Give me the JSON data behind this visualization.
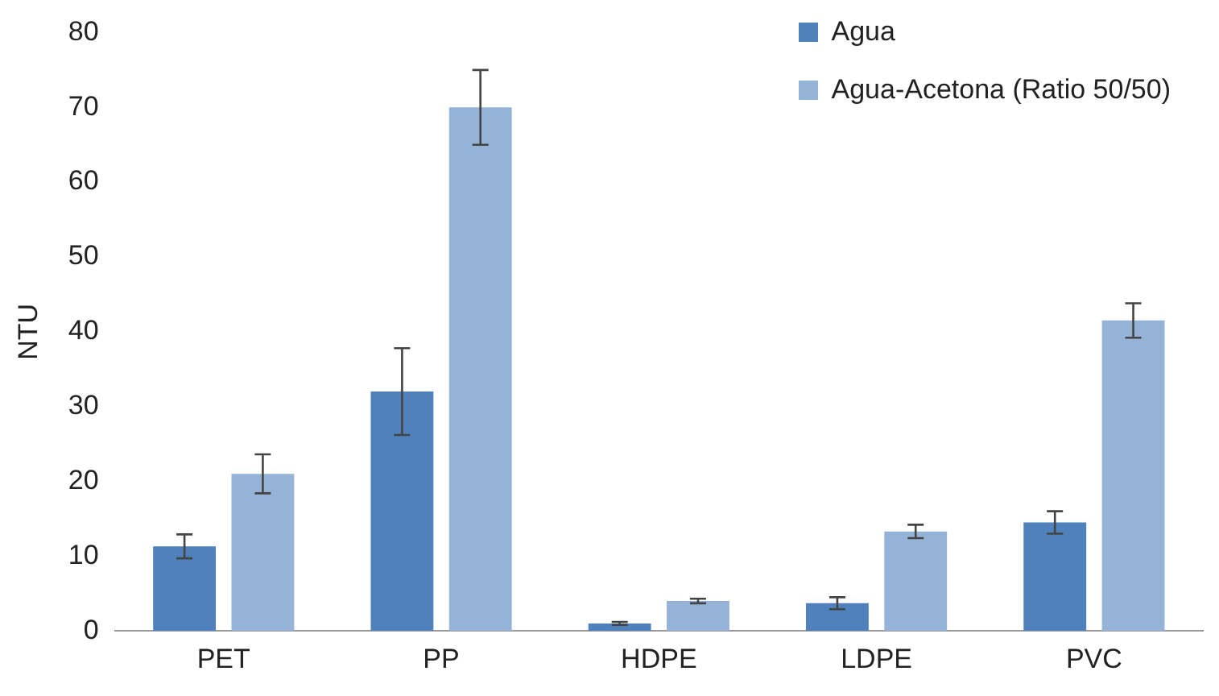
{
  "chart_data": {
    "type": "bar",
    "ylabel": "NTU",
    "categories": [
      "PET",
      "PP",
      "HDPE",
      "LDPE",
      "PVC"
    ],
    "series": [
      {
        "name": "Agua",
        "color": "#4f81bd",
        "values": [
          11.3,
          32,
          1,
          3.7,
          14.5
        ],
        "errors": [
          1.6,
          5.8,
          0.2,
          0.8,
          1.5
        ]
      },
      {
        "name": "Agua-Acetona (Ratio 50/50)",
        "color": "#95b3d7",
        "values": [
          21,
          70,
          4,
          13.3,
          41.5
        ],
        "errors": [
          2.6,
          5,
          0.3,
          0.9,
          2.3
        ]
      }
    ],
    "ylim": [
      0,
      80
    ],
    "yticks": [
      0,
      10,
      20,
      30,
      40,
      50,
      60,
      70,
      80
    ],
    "grid": false,
    "legend": "top right"
  }
}
